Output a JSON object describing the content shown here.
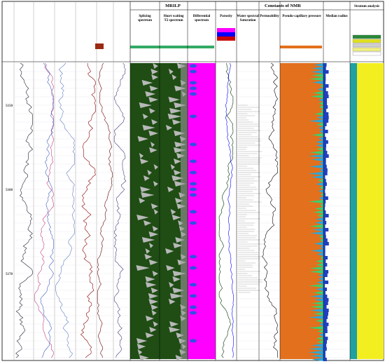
{
  "header": {
    "groups": [
      "MRILP",
      "Constants of NMR"
    ],
    "tracks": [
      {
        "group": 0,
        "label": "Splicing spectrum"
      },
      {
        "group": 0,
        "label": "Short waiting T2 spectrum"
      },
      {
        "group": 0,
        "label": "Differential spectrum"
      },
      {
        "group": 1,
        "label": "Porosity"
      },
      {
        "group": 1,
        "label": "Water spectral Saturation"
      },
      {
        "group": 1,
        "label": "Permeability"
      },
      {
        "group": 1,
        "label": "Pseudo-capillary pressure"
      },
      {
        "group": 1,
        "label": "Median radius"
      },
      {
        "group": 2,
        "label": "Stratum analysis"
      }
    ]
  },
  "depths": [
    "5150",
    "5160",
    "5170"
  ]
}
